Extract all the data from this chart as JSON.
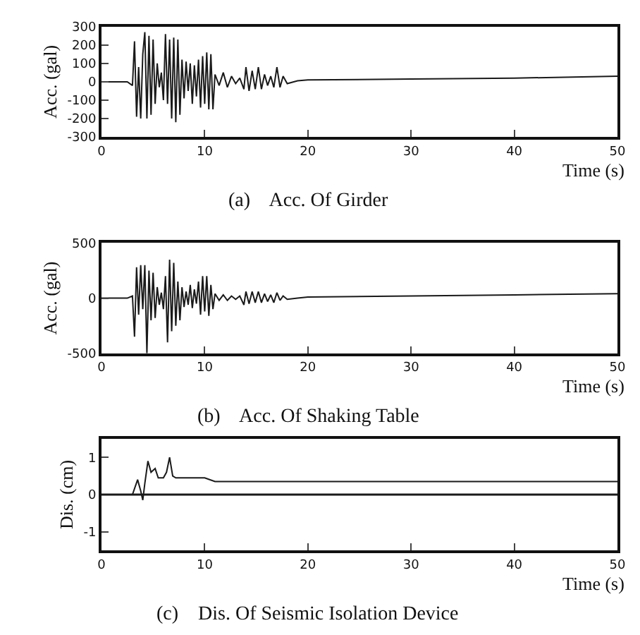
{
  "chart_data": [
    {
      "type": "line",
      "title": "(a)    Acc. Of Girder",
      "xlabel": "Time (s)",
      "ylabel": "Acc. (gal)",
      "xlim": [
        0,
        50
      ],
      "xticks": [
        0,
        10,
        20,
        30,
        40,
        50
      ],
      "ylim": [
        -300,
        300
      ],
      "yticks": [
        -300,
        -200,
        -100,
        0,
        100,
        200,
        300
      ],
      "x": [
        0,
        2.5,
        3.0,
        3.2,
        3.4,
        3.6,
        3.8,
        4.0,
        4.2,
        4.4,
        4.6,
        4.8,
        5.0,
        5.2,
        5.4,
        5.6,
        5.8,
        6.0,
        6.2,
        6.4,
        6.6,
        6.8,
        7.0,
        7.2,
        7.4,
        7.6,
        7.8,
        8.0,
        8.2,
        8.4,
        8.6,
        8.8,
        9.0,
        9.2,
        9.4,
        9.6,
        9.8,
        10.0,
        10.2,
        10.4,
        10.6,
        10.8,
        11.0,
        11.4,
        11.8,
        12.2,
        12.6,
        13.0,
        13.4,
        13.8,
        14.0,
        14.3,
        14.6,
        14.9,
        15.2,
        15.5,
        15.8,
        16.1,
        16.4,
        16.7,
        17.0,
        17.3,
        17.6,
        18.0,
        19,
        20,
        30,
        40,
        50
      ],
      "series": [
        {
          "color": "#1a1a1a",
          "values": [
            0,
            0,
            -20,
            220,
            -190,
            80,
            -200,
            150,
            270,
            -200,
            250,
            -180,
            230,
            -120,
            100,
            -30,
            50,
            -100,
            260,
            -120,
            230,
            -200,
            240,
            -220,
            230,
            -180,
            120,
            -90,
            110,
            -50,
            100,
            -120,
            90,
            -80,
            120,
            -140,
            140,
            -120,
            160,
            -150,
            150,
            -150,
            40,
            -20,
            50,
            -30,
            30,
            -10,
            20,
            -40,
            80,
            -50,
            60,
            -40,
            80,
            -40,
            40,
            -20,
            30,
            -30,
            80,
            -30,
            30,
            -10,
            5,
            10,
            15,
            20,
            30
          ]
        }
      ]
    },
    {
      "type": "line",
      "title": "(b)    Acc. Of Shaking Table",
      "xlabel": "Time (s)",
      "ylabel": "Acc. (gal)",
      "xlim": [
        0,
        50
      ],
      "xticks": [
        0,
        10,
        20,
        30,
        40,
        50
      ],
      "ylim": [
        -500,
        500
      ],
      "yticks": [
        -500,
        0,
        500
      ],
      "x": [
        0,
        2.5,
        3.0,
        3.2,
        3.4,
        3.6,
        3.8,
        4.0,
        4.2,
        4.4,
        4.6,
        4.8,
        5.0,
        5.2,
        5.4,
        5.6,
        5.8,
        6.0,
        6.2,
        6.4,
        6.6,
        6.8,
        7.0,
        7.2,
        7.4,
        7.6,
        7.8,
        8.0,
        8.2,
        8.4,
        8.6,
        8.8,
        9.0,
        9.2,
        9.4,
        9.6,
        9.8,
        10.0,
        10.2,
        10.4,
        10.6,
        10.8,
        11.0,
        11.4,
        11.8,
        12.2,
        12.6,
        13.0,
        13.4,
        13.8,
        14.0,
        14.3,
        14.6,
        14.9,
        15.2,
        15.5,
        15.8,
        16.1,
        16.4,
        16.7,
        17.0,
        17.3,
        17.6,
        18.0,
        19,
        20,
        30,
        40,
        50
      ],
      "series": [
        {
          "color": "#1a1a1a",
          "values": [
            0,
            0,
            20,
            -350,
            280,
            -150,
            300,
            -100,
            300,
            -500,
            250,
            -200,
            230,
            -180,
            100,
            -60,
            50,
            -100,
            200,
            -400,
            350,
            -300,
            320,
            -250,
            150,
            -200,
            100,
            -80,
            60,
            -60,
            120,
            -90,
            80,
            -50,
            150,
            -150,
            200,
            -120,
            200,
            -160,
            120,
            -100,
            40,
            -20,
            30,
            -20,
            20,
            -10,
            20,
            -60,
            60,
            -50,
            60,
            -40,
            60,
            -40,
            40,
            -30,
            30,
            -40,
            50,
            -20,
            20,
            -10,
            0,
            10,
            20,
            30,
            40
          ]
        }
      ]
    },
    {
      "type": "line",
      "title": "(c)    Dis. Of Seismic Isolation Device",
      "xlabel": "Time (s)",
      "ylabel": "Dis. (cm)",
      "xlim": [
        0,
        50
      ],
      "xticks": [
        0,
        10,
        20,
        30,
        40,
        50
      ],
      "ylim": [
        -1.5,
        1.5
      ],
      "yticks": [
        -1,
        0,
        1
      ],
      "x": [
        0,
        3,
        3.5,
        3.8,
        4.0,
        4.2,
        4.5,
        4.8,
        5.2,
        5.5,
        6.0,
        6.3,
        6.6,
        6.9,
        7.2,
        8,
        9,
        10,
        11,
        15,
        20,
        30,
        40,
        50
      ],
      "series": [
        {
          "color": "#1a1a1a",
          "values": [
            0,
            0,
            0.4,
            0.1,
            -0.15,
            0.3,
            0.9,
            0.6,
            0.7,
            0.45,
            0.45,
            0.6,
            1.0,
            0.5,
            0.45,
            0.45,
            0.45,
            0.45,
            0.35,
            0.35,
            0.35,
            0.35,
            0.35,
            0.35
          ]
        }
      ],
      "ref_lines": [
        {
          "axis": "y",
          "value": 0,
          "color": "#1a1a1a"
        }
      ]
    }
  ]
}
